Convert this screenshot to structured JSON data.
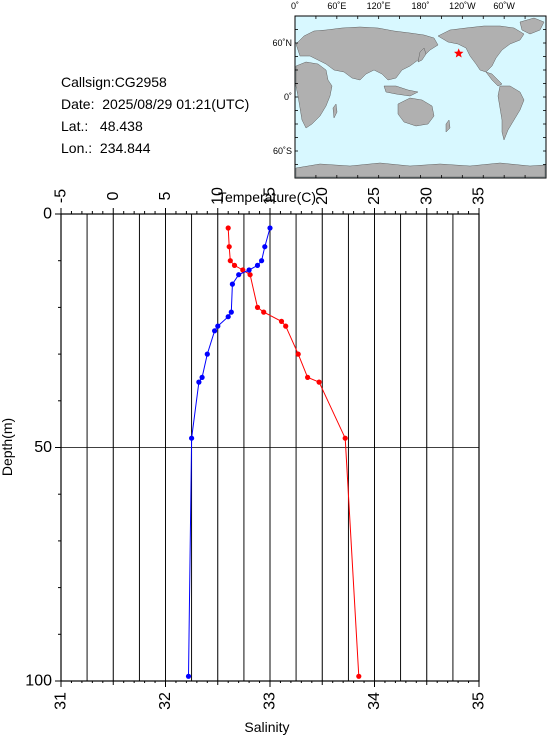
{
  "station": {
    "callsign": "Callsign:CG2958",
    "date": "Date:  2025/08/29 01:21(UTC)",
    "lat": "Lat.:   48.438",
    "lon": "Lon.:  234.844"
  },
  "map": {
    "top_labels": [
      "0˚",
      "60˚E",
      "120˚E",
      "180˚",
      "120˚W",
      "60˚W"
    ],
    "lat_labels": [
      "60˚N",
      "0˚",
      "60˚S"
    ],
    "ocean_color": "#d8f8ff",
    "land_color": "#b0b0b0",
    "marker_color": "#ff0000",
    "marker_lon": 234.844,
    "marker_lat": 48.438
  },
  "chart_data": {
    "type": "line",
    "title": "",
    "ylabel": "Depth(m)",
    "ylim": [
      0,
      100
    ],
    "y_ticks": [
      0,
      50,
      100
    ],
    "y_inverted": true,
    "temperature_axis": {
      "label": "Temperature(C)",
      "range": [
        -5,
        35
      ],
      "ticks": [
        -5,
        0,
        5,
        10,
        15,
        20,
        25,
        30,
        35
      ],
      "position": "top"
    },
    "salinity_axis": {
      "label": "Salinity",
      "range": [
        31,
        35
      ],
      "ticks": [
        31,
        32,
        33,
        34,
        35
      ],
      "position": "bottom"
    },
    "grid": true,
    "series": [
      {
        "axis": "temperature",
        "color": "#ff0000",
        "points": [
          {
            "depth": 3,
            "value": 11.0
          },
          {
            "depth": 7,
            "value": 11.1
          },
          {
            "depth": 10,
            "value": 11.2
          },
          {
            "depth": 11,
            "value": 11.6
          },
          {
            "depth": 12,
            "value": 12.4
          },
          {
            "depth": 13,
            "value": 13.1
          },
          {
            "depth": 20,
            "value": 13.8
          },
          {
            "depth": 21,
            "value": 14.4
          },
          {
            "depth": 23,
            "value": 16.1
          },
          {
            "depth": 24,
            "value": 16.5
          },
          {
            "depth": 30,
            "value": 17.7
          },
          {
            "depth": 35,
            "value": 18.6
          },
          {
            "depth": 36,
            "value": 19.7
          },
          {
            "depth": 48,
            "value": 22.2
          },
          {
            "depth": 99,
            "value": 23.5
          }
        ]
      },
      {
        "axis": "salinity",
        "color": "#0000ff",
        "points": [
          {
            "depth": 3,
            "value": 33.0
          },
          {
            "depth": 7,
            "value": 32.95
          },
          {
            "depth": 10,
            "value": 32.92
          },
          {
            "depth": 11,
            "value": 32.88
          },
          {
            "depth": 12,
            "value": 32.8
          },
          {
            "depth": 13,
            "value": 32.7
          },
          {
            "depth": 15,
            "value": 32.64
          },
          {
            "depth": 21,
            "value": 32.63
          },
          {
            "depth": 22,
            "value": 32.6
          },
          {
            "depth": 24,
            "value": 32.5
          },
          {
            "depth": 25,
            "value": 32.47
          },
          {
            "depth": 30,
            "value": 32.4
          },
          {
            "depth": 35,
            "value": 32.35
          },
          {
            "depth": 36,
            "value": 32.32
          },
          {
            "depth": 48,
            "value": 32.25
          },
          {
            "depth": 99,
            "value": 32.22
          }
        ]
      }
    ]
  }
}
